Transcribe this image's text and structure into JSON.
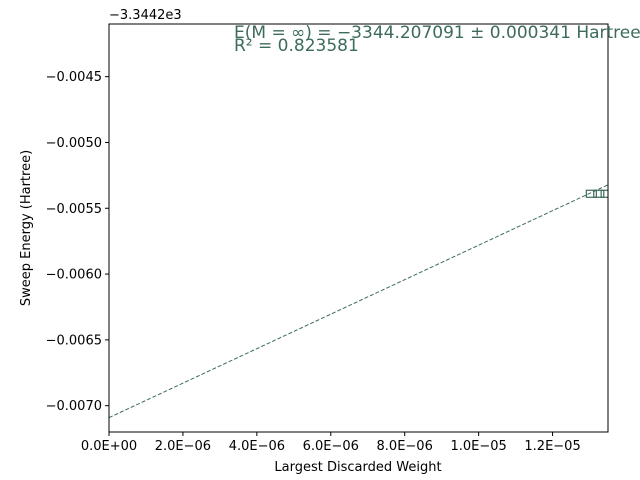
{
  "chart_data": {
    "type": "scatter",
    "xlabel": "Largest Discarded Weight",
    "ylabel": "Sweep Energy (Hartree)",
    "y_offset_label": "−3.3442e3",
    "xlim": [
      0,
      1.35e-05
    ],
    "ylim": [
      -0.0072,
      -0.0041
    ],
    "x_ticks": [
      {
        "value": 0,
        "label": "0.0E+00"
      },
      {
        "value": 2e-06,
        "label": "2.0E−06"
      },
      {
        "value": 4e-06,
        "label": "4.0E−06"
      },
      {
        "value": 6e-06,
        "label": "6.0E−06"
      },
      {
        "value": 8e-06,
        "label": "8.0E−06"
      },
      {
        "value": 1e-05,
        "label": "1.0E−05"
      },
      {
        "value": 1.2e-05,
        "label": "1.2E−05"
      }
    ],
    "y_ticks": [
      {
        "value": -0.0045,
        "label": "−0.0045"
      },
      {
        "value": -0.005,
        "label": "−0.0050"
      },
      {
        "value": -0.0055,
        "label": "−0.0055"
      },
      {
        "value": -0.006,
        "label": "−0.0060"
      },
      {
        "value": -0.0065,
        "label": "−0.0065"
      },
      {
        "value": -0.007,
        "label": "−0.0070"
      }
    ],
    "points": [
      {
        "x": 1.305e-05,
        "y": -0.00539
      },
      {
        "x": 1.325e-05,
        "y": -0.00539
      },
      {
        "x": 1.345e-05,
        "y": -0.00539
      }
    ],
    "fit_line": {
      "x": [
        0,
        1.35e-05
      ],
      "y": [
        -0.007091,
        -0.005322
      ]
    },
    "annotation_line1": "E(M = ∞) = −3344.207091 ± 0.000341 Hartree",
    "annotation_line2": "R² = 0.823581",
    "color": "#3d6b5e",
    "grid": false
  }
}
